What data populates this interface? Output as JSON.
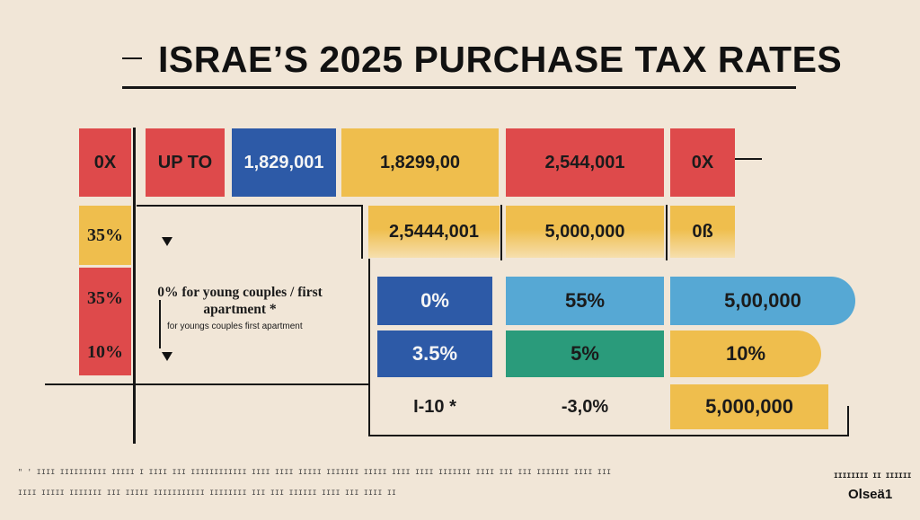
{
  "title": "ISRAE’S 2025 PURCHASE TAX RATES",
  "header_row": [
    "0X",
    "UP TO",
    "1,829,001",
    "1,8299,00",
    "2,544,001",
    "0X"
  ],
  "left_column": [
    "35%",
    "35%",
    "10%"
  ],
  "row2": [
    "2,5444,001",
    "5,000,000",
    "0ß"
  ],
  "row3": [
    "0%",
    "55%",
    "5,00,000"
  ],
  "row4": [
    "3.5%",
    "5%",
    "10%"
  ],
  "row5": [
    "I-10 *",
    "-3,0%",
    "5,000,000"
  ],
  "note": {
    "main": "0% for young couples / first apartment *",
    "sub": "for youngs couples first apartment"
  },
  "footer": {
    "line1": "\" ' IIII IIIIIIIIII IIIII I IIII III IIIIIIIIIIII IIII IIII IIIII IIIIIII IIIII IIII IIII IIIIIII IIII III III IIIIIII IIII III IIIII I IIII II IIIII III III IIII IIII IIIIII IIIIIII IIII I IIIII III IIIIII IIIIII",
    "line2": "IIII IIIII IIIIIII III IIIII IIIIIIIIIII IIIIIIII III III IIIIII IIII III IIII IIIII III IIII II III",
    "brand_small": "IIIIIIII II IIIIII",
    "brand_large": "Olsеä1"
  },
  "colors": {
    "background": "#f1e6d7",
    "red": "#de4a4b",
    "blue": "#2d5aa7",
    "yellow": "#efbe4d",
    "light_blue": "#56a8d4",
    "teal": "#2a9b7b"
  }
}
